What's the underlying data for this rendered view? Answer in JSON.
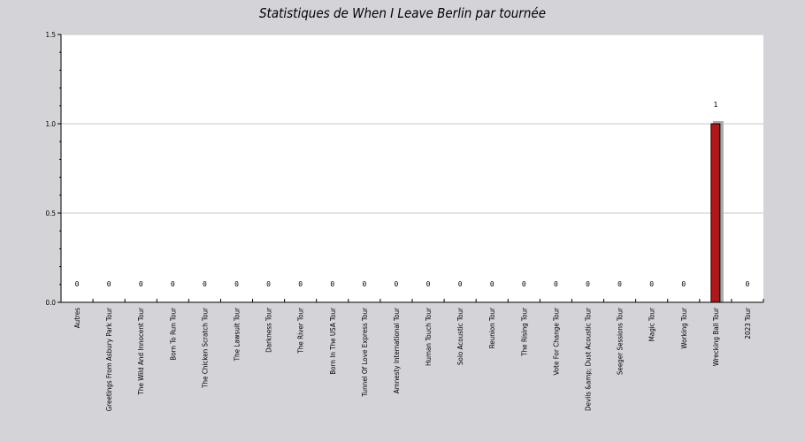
{
  "chart_data": {
    "type": "bar",
    "title": "Statistiques de When I Leave Berlin par tournée",
    "xlabel": "",
    "ylabel": "",
    "ylim": [
      0,
      1.5
    ],
    "yticks": [
      "0.0",
      "0.5",
      "1.0",
      "1.5"
    ],
    "grid": true,
    "categories": [
      "Autres",
      "Greetings From Asbury Park Tour",
      "The Wild And Innocent Tour",
      "Born To Run Tour",
      "The Chicken Scratch Tour",
      "The Lawsuit Tour",
      "Darkness Tour",
      "The River Tour",
      "Born In The USA Tour",
      "Tunnel Of Love Express Tour",
      "Amnesty International Tour",
      "Human Touch Tour",
      "Solo Acoustic Tour",
      "Reunion Tour",
      "The Rising Tour",
      "Vote For Change Tour",
      "Devils &amp; Dust Acoustic Tour",
      "Seeger Sessions Tour",
      "Magic Tour",
      "Working Tour",
      "Wrecking Ball Tour",
      "2023 Tour"
    ],
    "values": [
      0,
      0,
      0,
      0,
      0,
      0,
      0,
      0,
      0,
      0,
      0,
      0,
      0,
      0,
      0,
      0,
      0,
      0,
      0,
      0,
      1,
      0
    ],
    "value_labels": [
      "0",
      "0",
      "0",
      "0",
      "0",
      "0",
      "0",
      "0",
      "0",
      "0",
      "0",
      "0",
      "0",
      "0",
      "0",
      "0",
      "0",
      "0",
      "0",
      "0",
      "1",
      "0"
    ],
    "colors": {
      "background": "#d4d3d8",
      "plot": "#ffffff",
      "bar": "#b01818",
      "bar_shadow": "#a9a9a9",
      "grid": "#c8c8c8"
    }
  }
}
